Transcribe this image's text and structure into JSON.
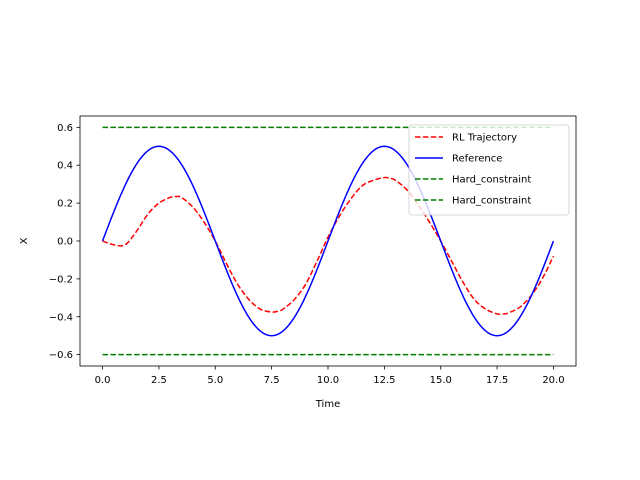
{
  "chart_data": {
    "type": "line",
    "xlabel": "Time",
    "ylabel": "X",
    "xlim": [
      -1.0,
      21.0
    ],
    "ylim": [
      -0.66,
      0.66
    ],
    "xticks": [
      0.0,
      2.5,
      5.0,
      7.5,
      10.0,
      12.5,
      15.0,
      17.5,
      20.0
    ],
    "xtick_labels": [
      "0.0",
      "2.5",
      "5.0",
      "7.5",
      "10.0",
      "12.5",
      "15.0",
      "17.5",
      "20.0"
    ],
    "yticks": [
      -0.6,
      -0.4,
      -0.2,
      0.0,
      0.2,
      0.4,
      0.6
    ],
    "ytick_labels": [
      "−0.6",
      "−0.4",
      "−0.2",
      "0.0",
      "0.2",
      "0.4",
      "0.6"
    ],
    "legend_position": "top-right",
    "series": [
      {
        "name": "RL Trajectory",
        "color": "#ff0000",
        "style": "dashed",
        "x": [
          0,
          0.5,
          1,
          1.5,
          2,
          2.5,
          3,
          3.3,
          3.5,
          4,
          4.5,
          5,
          5.5,
          6,
          6.5,
          7,
          7.5,
          7.8,
          8,
          8.5,
          9,
          9.5,
          10,
          10.5,
          11,
          11.5,
          12,
          12.5,
          12.8,
          13,
          13.5,
          14,
          14.5,
          15,
          15.5,
          16,
          16.5,
          17,
          17.5,
          17.8,
          18,
          18.5,
          19,
          19.5,
          20
        ],
        "y": [
          0.0,
          -0.02,
          -0.02,
          0.05,
          0.14,
          0.2,
          0.23,
          0.235,
          0.23,
          0.18,
          0.1,
          0.0,
          -0.12,
          -0.23,
          -0.31,
          -0.36,
          -0.375,
          -0.37,
          -0.36,
          -0.31,
          -0.23,
          -0.11,
          0.02,
          0.13,
          0.22,
          0.29,
          0.32,
          0.335,
          0.33,
          0.32,
          0.27,
          0.19,
          0.1,
          0.0,
          -0.11,
          -0.22,
          -0.31,
          -0.36,
          -0.385,
          -0.385,
          -0.38,
          -0.35,
          -0.29,
          -0.2,
          -0.08
        ]
      },
      {
        "name": "Reference",
        "color": "#0000ff",
        "style": "solid",
        "function": "0.5*sin(2*pi*t/10)",
        "x_range": [
          0,
          20
        ]
      },
      {
        "name": "Hard_constraint",
        "color": "#008000",
        "style": "dashed",
        "x": [
          0,
          20
        ],
        "y": [
          0.6,
          0.6
        ]
      },
      {
        "name": "Hard_constraint",
        "color": "#008000",
        "style": "dashed",
        "x": [
          0,
          20
        ],
        "y": [
          -0.6,
          -0.6
        ]
      }
    ]
  }
}
